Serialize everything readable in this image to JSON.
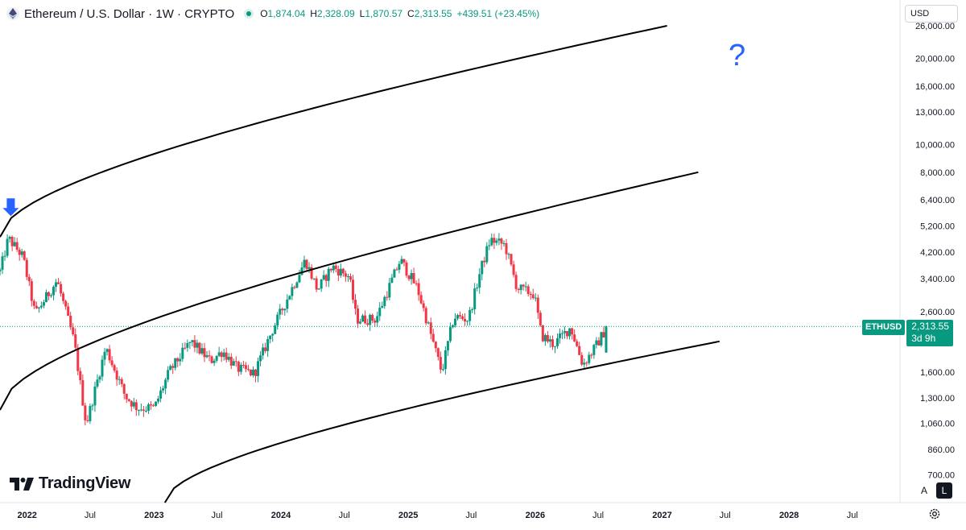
{
  "header": {
    "symbol": "Ethereum / U.S. Dollar · 1W · CRYPTO",
    "ohlc": [
      {
        "k": "O",
        "v": "1,874.04"
      },
      {
        "k": "H",
        "v": "2,328.09"
      },
      {
        "k": "L",
        "v": "1,870.57"
      },
      {
        "k": "C",
        "v": "2,313.55"
      },
      {
        "k": "",
        "v": "+439.51 (+23.45%)"
      }
    ]
  },
  "currency": "USD",
  "brand": "TradingView",
  "annotation": "?",
  "price_label": {
    "symbol": "ETHUSD",
    "price": "2,313.55",
    "countdown": "3d 9h"
  },
  "scale_buttons": {
    "auto": "A",
    "log": "L"
  },
  "colors": {
    "up": "#089981",
    "down": "#f23645",
    "accent": "#2962ff",
    "channel": "#000000"
  },
  "icons": [
    "ethereum-icon",
    "market-open-dot-icon",
    "down-arrow-marker-icon",
    "settings-gear-icon"
  ],
  "chart_data": {
    "type": "candlestick",
    "title": "Ethereum / U.S. Dollar · 1W · CRYPTO",
    "yscale": "log",
    "ylim": [
      560,
      32000
    ],
    "y_ticks": [
      26000,
      20000,
      16000,
      13000,
      10000,
      8000,
      6400,
      5200,
      4200,
      3400,
      2600,
      1600,
      1300,
      1060,
      860,
      700
    ],
    "y_tick_labels": [
      "26,000.00",
      "20,000.00",
      "16,000.00",
      "13,000.00",
      "10,000.00",
      "8,000.00",
      "6,400.00",
      "5,200.00",
      "4,200.00",
      "3,400.00",
      "2,600.00",
      "1,600.00",
      "1,300.00",
      "1,060.00",
      "860.00",
      "700.00"
    ],
    "x_range": [
      "2021-10-15",
      "2028-11-15"
    ],
    "x_ticks": [
      {
        "label": "2022",
        "date": "2022-01-01",
        "year": true
      },
      {
        "label": "Jul",
        "date": "2022-07-01",
        "year": false
      },
      {
        "label": "2023",
        "date": "2023-01-01",
        "year": true
      },
      {
        "label": "Jul",
        "date": "2023-07-01",
        "year": false
      },
      {
        "label": "2024",
        "date": "2024-01-01",
        "year": true
      },
      {
        "label": "Jul",
        "date": "2024-07-01",
        "year": false
      },
      {
        "label": "2025",
        "date": "2025-01-01",
        "year": true
      },
      {
        "label": "Jul",
        "date": "2025-07-01",
        "year": false
      },
      {
        "label": "2026",
        "date": "2026-01-01",
        "year": true
      },
      {
        "label": "Jul",
        "date": "2026-07-01",
        "year": false
      },
      {
        "label": "2027",
        "date": "2027-01-01",
        "year": true
      },
      {
        "label": "Jul",
        "date": "2027-07-01",
        "year": false
      },
      {
        "label": "2028",
        "date": "2028-01-01",
        "year": true
      },
      {
        "label": "Jul",
        "date": "2028-07-01",
        "year": false
      }
    ],
    "last_price": 2313.55,
    "price_path": [
      [
        "2021-10-15",
        3600
      ],
      [
        "2021-11-08",
        4700
      ],
      [
        "2021-12-20",
        4050
      ],
      [
        "2022-01-24",
        2550
      ],
      [
        "2022-03-28",
        3350
      ],
      [
        "2022-05-16",
        2050
      ],
      [
        "2022-06-20",
        1050
      ],
      [
        "2022-08-15",
        1950
      ],
      [
        "2022-10-10",
        1320
      ],
      [
        "2022-11-14",
        1200
      ],
      [
        "2023-01-02",
        1200
      ],
      [
        "2023-02-13",
        1600
      ],
      [
        "2023-04-17",
        2050
      ],
      [
        "2023-06-12",
        1750
      ],
      [
        "2023-07-17",
        1900
      ],
      [
        "2023-08-28",
        1650
      ],
      [
        "2023-10-16",
        1580
      ],
      [
        "2023-12-04",
        2200
      ],
      [
        "2024-03-11",
        3950
      ],
      [
        "2024-04-15",
        3100
      ],
      [
        "2024-05-27",
        3750
      ],
      [
        "2024-07-15",
        3450
      ],
      [
        "2024-08-05",
        2450
      ],
      [
        "2024-09-30",
        2450
      ],
      [
        "2024-12-09",
        3950
      ],
      [
        "2025-01-27",
        3150
      ],
      [
        "2025-03-03",
        2250
      ],
      [
        "2025-04-07",
        1600
      ],
      [
        "2025-05-12",
        2500
      ],
      [
        "2025-06-23",
        2450
      ],
      [
        "2025-07-28",
        3650
      ],
      [
        "2025-08-25",
        4650
      ],
      [
        "2025-10-06",
        4450
      ],
      [
        "2025-11-10",
        3150
      ],
      [
        "2025-12-29",
        3000
      ],
      [
        "2026-01-19",
        2150
      ],
      [
        "2026-02-23",
        2000
      ],
      [
        "2026-04-13",
        2300
      ],
      [
        "2026-05-18",
        1700
      ],
      [
        "2026-06-22",
        1950
      ],
      [
        "2026-07-27",
        2313.55
      ]
    ],
    "channel_lines": [
      {
        "name": "upper",
        "points": [
          [
            "2021-10-15",
            4750
          ],
          [
            "2027-01-15",
            26000
          ]
        ]
      },
      {
        "name": "middle",
        "points": [
          [
            "2021-10-15",
            1180
          ],
          [
            "2027-04-15",
            8000
          ]
        ]
      },
      {
        "name": "lower",
        "points": [
          [
            "2023-02-01",
            560
          ],
          [
            "2027-06-15",
            2050
          ]
        ]
      }
    ],
    "markers": [
      {
        "date": "2021-11-15",
        "price": 6000,
        "type": "down-arrow"
      }
    ]
  }
}
